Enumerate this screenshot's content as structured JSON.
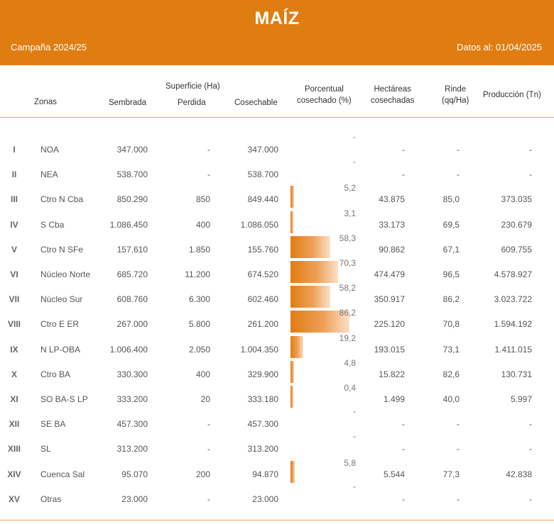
{
  "header": {
    "title": "MAÍZ",
    "campaign": "Campaña 2024/25",
    "date": "Datos al: 01/04/2025"
  },
  "columns": {
    "zonas": "Zonas",
    "superficie": "Superficie (Ha)",
    "sembrada": "Sembrada",
    "perdida": "Perdida",
    "cosechable": "Cosechable",
    "porcentual_1": "Porcentual",
    "porcentual_2": "cosechado (%)",
    "hectareas_1": "Hectáreas",
    "hectareas_2": "cosechadas",
    "rinde_1": "Rinde",
    "rinde_2": "(qq/Ha)",
    "produccion": "Producción (Tn)"
  },
  "rows": [
    {
      "num": "I",
      "zona": "NOA",
      "sembrada": "347.000",
      "perdida": "-",
      "cosechable": "347.000",
      "pct_label": "-",
      "pct": 0,
      "hectareas": "-",
      "rinde": "-",
      "produccion": "-"
    },
    {
      "num": "II",
      "zona": "NEA",
      "sembrada": "538.700",
      "perdida": "-",
      "cosechable": "538.700",
      "pct_label": "-",
      "pct": 0,
      "hectareas": "-",
      "rinde": "-",
      "produccion": "-"
    },
    {
      "num": "III",
      "zona": "Ctro N Cba",
      "sembrada": "850.290",
      "perdida": "850",
      "cosechable": "849.440",
      "pct_label": "5,2",
      "pct": 5.2,
      "hectareas": "43.875",
      "rinde": "85,0",
      "produccion": "373.035"
    },
    {
      "num": "IV",
      "zona": "S Cba",
      "sembrada": "1.086.450",
      "perdida": "400",
      "cosechable": "1.086.050",
      "pct_label": "3,1",
      "pct": 3.1,
      "hectareas": "33.173",
      "rinde": "69,5",
      "produccion": "230.679"
    },
    {
      "num": "V",
      "zona": "Ctro N SFe",
      "sembrada": "157.610",
      "perdida": "1.850",
      "cosechable": "155.760",
      "pct_label": "58,3",
      "pct": 58.3,
      "hectareas": "90.862",
      "rinde": "67,1",
      "produccion": "609.755"
    },
    {
      "num": "VI",
      "zona": "Núcleo Norte",
      "sembrada": "685.720",
      "perdida": "11.200",
      "cosechable": "674.520",
      "pct_label": "70,3",
      "pct": 70.3,
      "hectareas": "474.479",
      "rinde": "96,5",
      "produccion": "4.578.927"
    },
    {
      "num": "VII",
      "zona": "Núcleo Sur",
      "sembrada": "608.760",
      "perdida": "6.300",
      "cosechable": "602.460",
      "pct_label": "58,2",
      "pct": 58.2,
      "hectareas": "350.917",
      "rinde": "86,2",
      "produccion": "3.023.722"
    },
    {
      "num": "VIII",
      "zona": "Ctro E ER",
      "sembrada": "267.000",
      "perdida": "5.800",
      "cosechable": "261.200",
      "pct_label": "86,2",
      "pct": 86.2,
      "hectareas": "225.120",
      "rinde": "70,8",
      "produccion": "1.594.192"
    },
    {
      "num": "IX",
      "zona": "N LP-OBA",
      "sembrada": "1.006.400",
      "perdida": "2.050",
      "cosechable": "1.004.350",
      "pct_label": "19,2",
      "pct": 19.2,
      "hectareas": "193.015",
      "rinde": "73,1",
      "produccion": "1.411.015"
    },
    {
      "num": "X",
      "zona": "Ctro BA",
      "sembrada": "330.300",
      "perdida": "400",
      "cosechable": "329.900",
      "pct_label": "4,8",
      "pct": 4.8,
      "hectareas": "15.822",
      "rinde": "82,6",
      "produccion": "130.731"
    },
    {
      "num": "XI",
      "zona": "SO BA-S LP",
      "sembrada": "333.200",
      "perdida": "20",
      "cosechable": "333.180",
      "pct_label": "0,4",
      "pct": 0.4,
      "hectareas": "1.499",
      "rinde": "40,0",
      "produccion": "5.997"
    },
    {
      "num": "XII",
      "zona": "SE BA",
      "sembrada": "457.300",
      "perdida": "-",
      "cosechable": "457.300",
      "pct_label": "-",
      "pct": 0,
      "hectareas": "-",
      "rinde": "-",
      "produccion": "-"
    },
    {
      "num": "XIII",
      "zona": "SL",
      "sembrada": "313.200",
      "perdida": "-",
      "cosechable": "313.200",
      "pct_label": "-",
      "pct": 0,
      "hectareas": "-",
      "rinde": "-",
      "produccion": "-"
    },
    {
      "num": "XIV",
      "zona": "Cuenca Sal",
      "sembrada": "95.070",
      "perdida": "200",
      "cosechable": "94.870",
      "pct_label": "5,8",
      "pct": 5.8,
      "hectareas": "5.544",
      "rinde": "77,3",
      "produccion": "42.838"
    },
    {
      "num": "XV",
      "zona": "Otras",
      "sembrada": "23.000",
      "perdida": "-",
      "cosechable": "23.000",
      "pct_label": "-",
      "pct": 0,
      "hectareas": "-",
      "rinde": "-",
      "produccion": "-"
    }
  ],
  "colors": {
    "header_bg": "#e07d12",
    "bar": "#e07d12",
    "rule": "#e8a060"
  }
}
